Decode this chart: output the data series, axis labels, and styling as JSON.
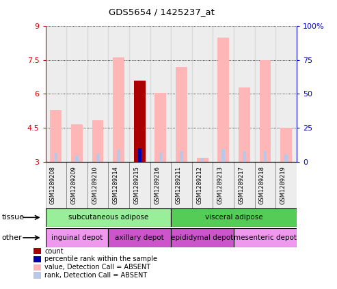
{
  "title": "GDS5654 / 1425237_at",
  "samples": [
    "GSM1289208",
    "GSM1289209",
    "GSM1289210",
    "GSM1289214",
    "GSM1289215",
    "GSM1289216",
    "GSM1289211",
    "GSM1289212",
    "GSM1289213",
    "GSM1289217",
    "GSM1289218",
    "GSM1289219"
  ],
  "value_bars": [
    5.3,
    4.65,
    4.85,
    7.6,
    6.6,
    6.05,
    7.2,
    3.18,
    8.5,
    6.3,
    7.5,
    4.5
  ],
  "rank_bars": [
    3.38,
    3.28,
    3.35,
    3.55,
    3.6,
    3.42,
    3.48,
    3.18,
    3.58,
    3.48,
    3.48,
    3.32
  ],
  "count_bar_index": 4,
  "count_bar_value": 6.6,
  "pct_rank_bar_index": 4,
  "pct_rank_bar_value": 3.6,
  "ymin": 3,
  "ymax": 9,
  "yticks": [
    3,
    4.5,
    6,
    7.5,
    9
  ],
  "ytick_labels": [
    "3",
    "4.5",
    "6",
    "7.5",
    "9"
  ],
  "right_yticks": [
    0,
    25,
    50,
    75,
    100
  ],
  "right_ytick_labels": [
    "0",
    "25",
    "50",
    "75",
    "100%"
  ],
  "color_value_bar": "#ffb6b6",
  "color_rank_bar": "#b8c8e8",
  "color_count_bar": "#aa0000",
  "color_pct_rank_bar": "#0000aa",
  "tissue_row": [
    {
      "label": "subcutaneous adipose",
      "start": 0,
      "end": 6,
      "color": "#99ee99"
    },
    {
      "label": "visceral adipose",
      "start": 6,
      "end": 12,
      "color": "#55cc55"
    }
  ],
  "other_row": [
    {
      "label": "inguinal depot",
      "start": 0,
      "end": 3,
      "color": "#ee99ee"
    },
    {
      "label": "axillary depot",
      "start": 3,
      "end": 6,
      "color": "#cc55cc"
    },
    {
      "label": "epididymal depot",
      "start": 6,
      "end": 9,
      "color": "#cc55cc"
    },
    {
      "label": "mesenteric depot",
      "start": 9,
      "end": 12,
      "color": "#ee99ee"
    }
  ],
  "bar_width": 0.55,
  "bg_color": "#ffffff",
  "col_bg_color": "#cccccc",
  "col_bg_alpha": 0.35,
  "axis_color_left": "#cc0000",
  "axis_color_right": "#0000cc"
}
